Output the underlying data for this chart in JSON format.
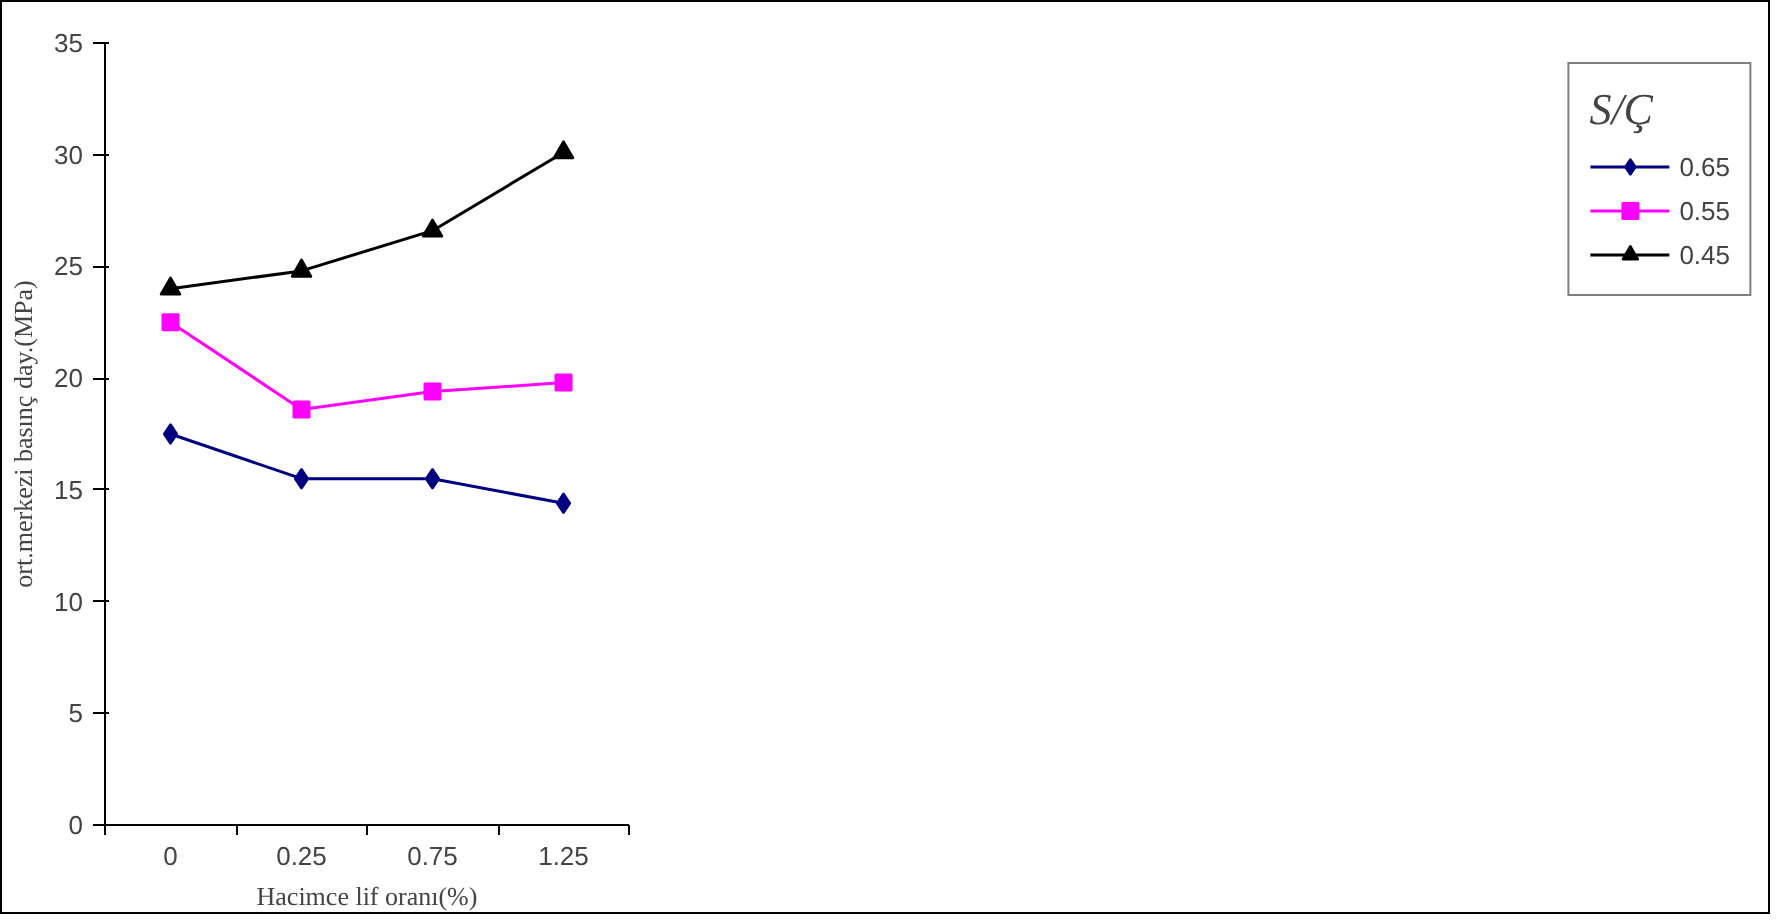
{
  "chart_data": {
    "type": "line",
    "xlabel": "Hacimce lif oranı(%)",
    "ylabel": "ort.merkezi basınç day.(MPa)",
    "legend_title": "S/Ç",
    "categories": [
      "0",
      "0.25",
      "0.75",
      "1.25"
    ],
    "ylim": [
      0,
      35
    ],
    "yticks": [
      0,
      5,
      10,
      15,
      20,
      25,
      30,
      35
    ],
    "grid": false,
    "legend": "right",
    "series": [
      {
        "name": "0.65",
        "color": "#000080",
        "marker": "diamond",
        "values": [
          17.5,
          15.5,
          15.5,
          14.4
        ]
      },
      {
        "name": "0.55",
        "color": "#ff00ff",
        "marker": "square",
        "values": [
          22.5,
          18.6,
          19.4,
          19.8
        ]
      },
      {
        "name": "0.45",
        "color": "#000000",
        "marker": "triangle",
        "values": [
          24.0,
          24.8,
          26.6,
          30.1
        ]
      }
    ]
  }
}
